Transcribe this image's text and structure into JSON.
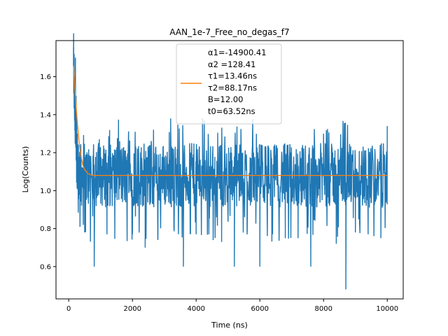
{
  "chart_data": {
    "type": "line",
    "title": "AAN_1e-7_Free_no_degas_f7",
    "xlabel": "Time (ns)",
    "ylabel": "Log(Counts)",
    "xlim": [
      -400,
      10500
    ],
    "ylim": [
      0.43,
      1.79
    ],
    "xticks": [
      0,
      2000,
      4000,
      6000,
      8000,
      10000
    ],
    "yticks": [
      0.6,
      0.8,
      1.0,
      1.2,
      1.4,
      1.6
    ],
    "grid": false,
    "legend_position": "top-center",
    "series": [
      {
        "color": "#1f77b4",
        "x": [
          150,
          170,
          190,
          210,
          230,
          250,
          270,
          290,
          310,
          330,
          350,
          500,
          800,
          1200,
          1600,
          2000,
          2400,
          2800,
          3200,
          3600,
          4000,
          4200,
          4400,
          4800,
          5200,
          5600,
          6000,
          6400,
          6800,
          7200,
          7600,
          8000,
          8400,
          8700,
          9000,
          9400,
          9800,
          10000
        ],
        "values": [
          1.65,
          1.72,
          1.6,
          1.7,
          1.5,
          1.4,
          1.3,
          1.2,
          1.15,
          1.1,
          1.05,
          0.78,
          0.6,
          0.77,
          1.26,
          0.77,
          0.7,
          0.75,
          1.38,
          0.6,
          0.77,
          1.38,
          0.77,
          0.73,
          0.6,
          0.77,
          0.6,
          0.77,
          0.75,
          0.75,
          0.6,
          1.3,
          0.72,
          0.48,
          0.78,
          0.77,
          0.75,
          1.34
        ]
      },
      {
        "name": "α1=-14900.41\nα2 =128.41\nτ1=13.46ns\nτ2=88.17ns\nB=12.00\nt0=63.52ns",
        "color": "#ff7f0e",
        "x": [
          150,
          200,
          250,
          300,
          350,
          400,
          450,
          500,
          550,
          600,
          700,
          800,
          1000,
          2000,
          4000,
          6000,
          8000,
          10000
        ],
        "values": [
          1.66,
          1.52,
          1.4,
          1.3,
          1.22,
          1.17,
          1.13,
          1.11,
          1.1,
          1.09,
          1.082,
          1.08,
          1.08,
          1.08,
          1.08,
          1.08,
          1.08,
          1.08
        ]
      }
    ]
  }
}
